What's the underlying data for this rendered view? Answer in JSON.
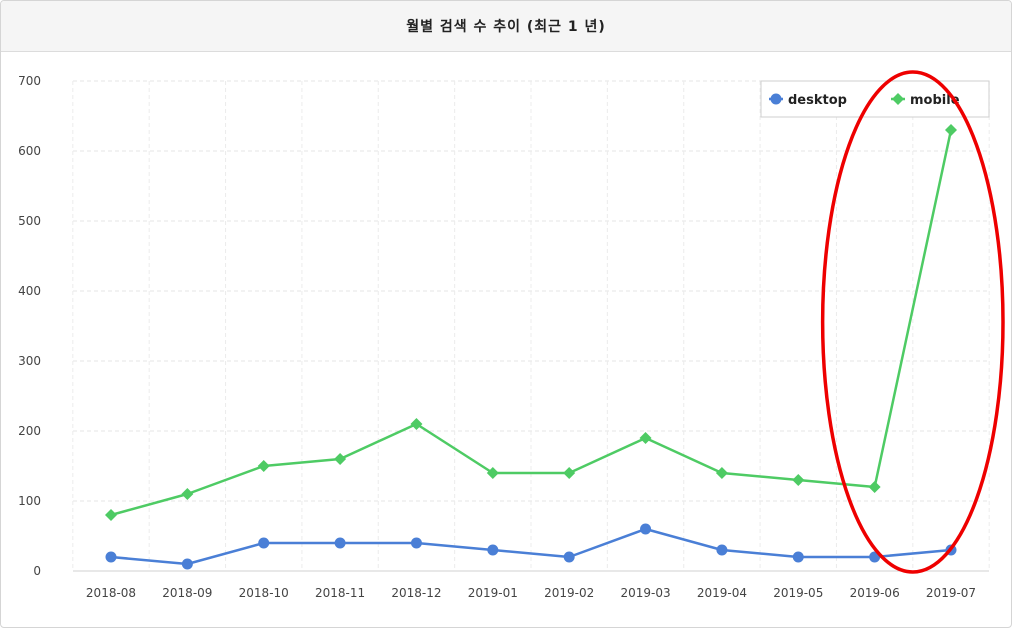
{
  "panel": {
    "title": "월별 검색 수 추이 (최근 1 년)"
  },
  "chart_data": {
    "type": "line",
    "title": "월별 검색 수 추이 (최근 1 년)",
    "categories": [
      "2018-08",
      "2018-09",
      "2018-10",
      "2018-11",
      "2018-12",
      "2019-01",
      "2019-02",
      "2019-03",
      "2019-04",
      "2019-05",
      "2019-06",
      "2019-07"
    ],
    "ylim": [
      0,
      700
    ],
    "yticks": [
      0,
      100,
      200,
      300,
      400,
      500,
      600,
      700
    ],
    "grid": true,
    "legend_position": "top-right",
    "series": [
      {
        "name": "desktop",
        "color": "#4a7fd6",
        "marker": "circle",
        "values": [
          20,
          10,
          40,
          40,
          40,
          30,
          20,
          60,
          30,
          20,
          20,
          30
        ]
      },
      {
        "name": "mobile",
        "color": "#4ecb64",
        "marker": "diamond",
        "values": [
          80,
          110,
          150,
          160,
          210,
          140,
          140,
          190,
          140,
          130,
          120,
          630
        ]
      }
    ],
    "annotation": {
      "shape": "ellipse",
      "color": "#ee0000",
      "covers_categories": [
        "2019-06",
        "2019-07"
      ]
    }
  }
}
